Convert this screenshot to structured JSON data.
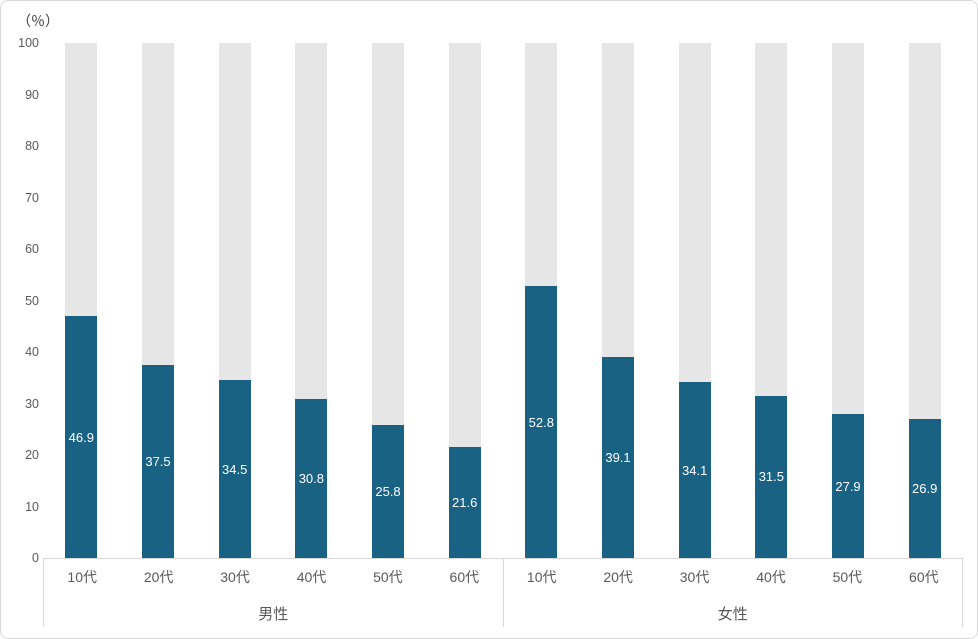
{
  "chart_data": {
    "type": "bar",
    "subtype": "stacked-to-100-percent",
    "unit_label": "（％）",
    "ylim": [
      0,
      100
    ],
    "yticks": [
      0,
      10,
      20,
      30,
      40,
      50,
      60,
      70,
      80,
      90,
      100
    ],
    "grid": false,
    "legend": "none",
    "categories": [
      "10代",
      "20代",
      "30代",
      "40代",
      "50代",
      "60代"
    ],
    "groups": [
      {
        "label": "男性",
        "values": [
          46.9,
          37.5,
          34.5,
          30.8,
          25.8,
          21.6
        ]
      },
      {
        "label": "女性",
        "values": [
          52.8,
          39.1,
          34.1,
          31.5,
          27.9,
          26.9
        ]
      }
    ]
  },
  "colors": {
    "background": "#FFFFFF",
    "frame_border": "#D9D9D9",
    "axis_line": "#D9D9D9",
    "bar_fill": "#1A6284",
    "remainder_fill": "#E6E6E6",
    "tick_text": "#595959",
    "unit_label_text": "#404040",
    "value_label_text": "#FFFFFF"
  }
}
